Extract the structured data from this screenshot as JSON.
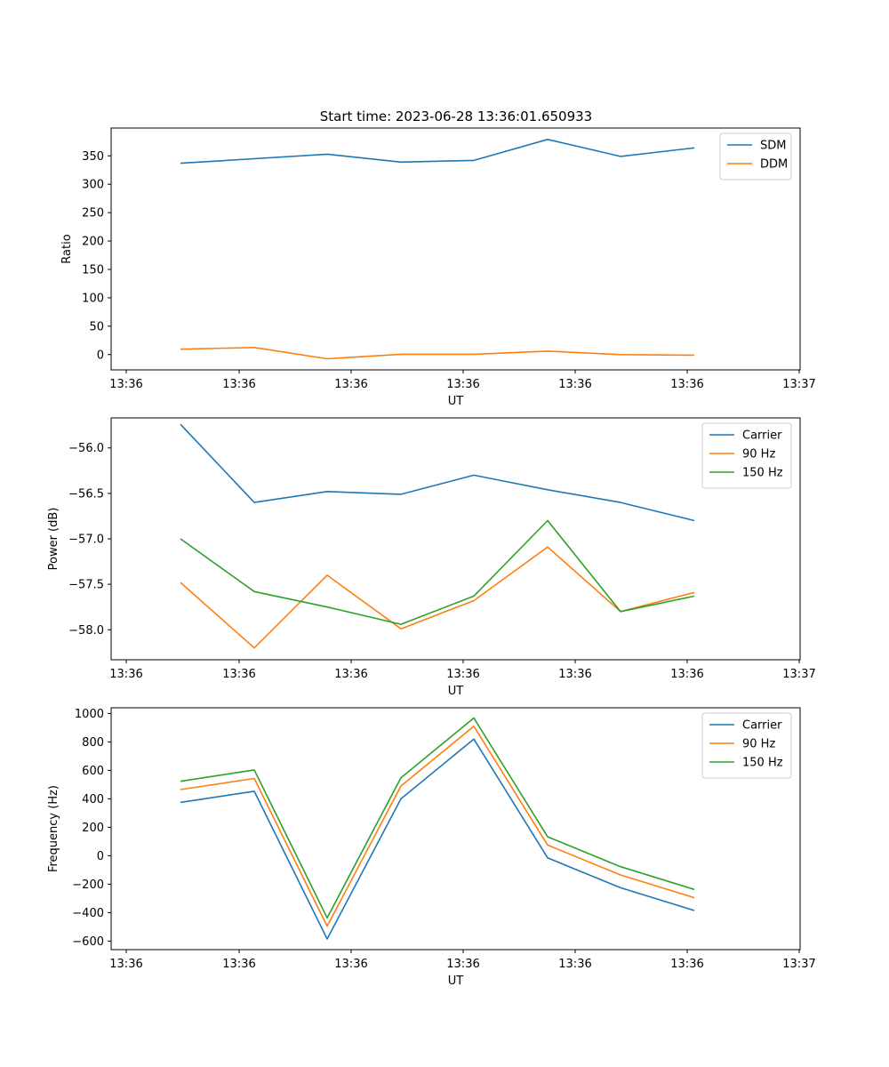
{
  "colors": {
    "series_blue": "#1f77b4",
    "series_orange": "#ff7f0e",
    "series_green": "#2ca02c",
    "axes": "#000000",
    "legend_border": "#cccccc"
  },
  "chart_data": [
    {
      "type": "line",
      "title": "Start time: 2023-06-28 13:36:01.650933",
      "xlabel": "UT",
      "ylabel": "Ratio",
      "x_tick_labels": [
        "13:36",
        "13:36",
        "13:36",
        "13:36",
        "13:36",
        "13:36",
        "13:37"
      ],
      "y_ticks": [
        0,
        50,
        100,
        150,
        200,
        250,
        300,
        350
      ],
      "y_tick_labels": [
        "0",
        "50",
        "100",
        "150",
        "200",
        "250",
        "300",
        "350"
      ],
      "ylim": [
        -27,
        399
      ],
      "grid": false,
      "legend_position": "top-right",
      "series": [
        {
          "name": "SDM",
          "color": "#1f77b4",
          "values": [
            337,
            345,
            353,
            339,
            342,
            379,
            349,
            364
          ]
        },
        {
          "name": "DDM",
          "color": "#ff7f0e",
          "values": [
            9.5,
            12.5,
            -7.5,
            0.5,
            0.5,
            6,
            0,
            -1
          ]
        }
      ]
    },
    {
      "type": "line",
      "title": "",
      "xlabel": "UT",
      "ylabel": "Power (dB)",
      "x_tick_labels": [
        "13:36",
        "13:36",
        "13:36",
        "13:36",
        "13:36",
        "13:36",
        "13:37"
      ],
      "y_ticks": [
        -58.0,
        -57.5,
        -57.0,
        -56.5,
        -56.0
      ],
      "y_tick_labels": [
        "−58.0",
        "−57.5",
        "−57.0",
        "−56.5",
        "−56.0"
      ],
      "ylim": [
        -58.33,
        -55.67
      ],
      "grid": false,
      "legend_position": "top-right",
      "series": [
        {
          "name": "Carrier",
          "color": "#1f77b4",
          "values": [
            -55.74,
            -56.6,
            -56.48,
            -56.51,
            -56.3,
            -56.46,
            -56.6,
            -56.8
          ]
        },
        {
          "name": "90 Hz",
          "color": "#ff7f0e",
          "values": [
            -57.48,
            -58.2,
            -57.4,
            -57.99,
            -57.68,
            -57.09,
            -57.8,
            -57.59
          ]
        },
        {
          "name": "150 Hz",
          "color": "#2ca02c",
          "values": [
            -57.0,
            -57.58,
            -57.75,
            -57.94,
            -57.63,
            -56.8,
            -57.8,
            -57.63
          ]
        }
      ]
    },
    {
      "type": "line",
      "title": "",
      "xlabel": "UT",
      "ylabel": "Frequency (Hz)",
      "x_tick_labels": [
        "13:36",
        "13:36",
        "13:36",
        "13:36",
        "13:36",
        "13:36",
        "13:37"
      ],
      "y_ticks": [
        -600,
        -400,
        -200,
        0,
        200,
        400,
        600,
        800,
        1000
      ],
      "y_tick_labels": [
        "−600",
        "−400",
        "−200",
        "0",
        "200",
        "400",
        "600",
        "800",
        "1000"
      ],
      "ylim": [
        -660,
        1040
      ],
      "grid": false,
      "legend_position": "top-right",
      "series": [
        {
          "name": "Carrier",
          "color": "#1f77b4",
          "values": [
            375,
            453,
            -585,
            400,
            820,
            -15,
            -225,
            -385
          ]
        },
        {
          "name": "90 Hz",
          "color": "#ff7f0e",
          "values": [
            465,
            543,
            -495,
            490,
            910,
            75,
            -135,
            -295
          ]
        },
        {
          "name": "150 Hz",
          "color": "#2ca02c",
          "values": [
            523,
            603,
            -437,
            548,
            968,
            133,
            -77,
            -237
          ]
        }
      ]
    }
  ]
}
